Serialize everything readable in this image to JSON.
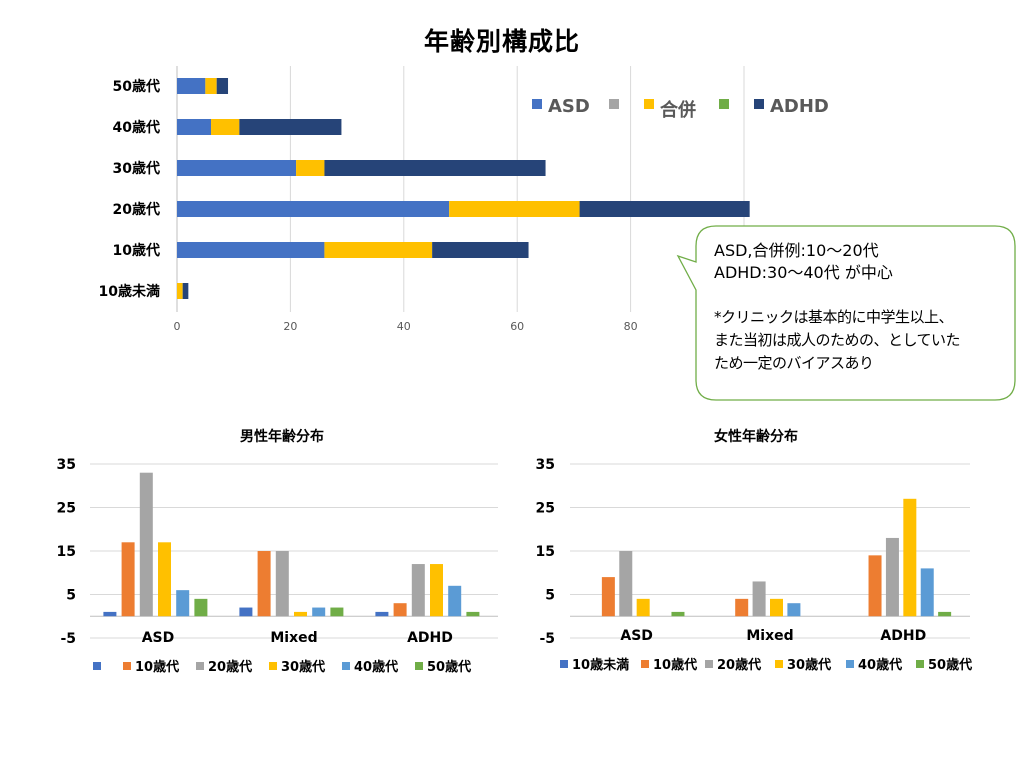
{
  "title": "年齢別構成比",
  "colors": {
    "ASD": "#4472C4",
    "grey": "#A5A5A5",
    "gold": "#FFC000",
    "green": "#70AD47",
    "ADHD": "#264478",
    "orange": "#ED7D31",
    "lightblue": "#5B9BD5",
    "grid": "#D9D9D9"
  },
  "chart_data": [
    {
      "type": "bar",
      "orientation": "horizontal",
      "stacked": true,
      "title": "年齢別構成比",
      "categories": [
        "50歳代",
        "40歳代",
        "30歳代",
        "20歳代",
        "10歳代",
        "10歳未満"
      ],
      "series": [
        {
          "name": "ASD",
          "color": "#4472C4",
          "values": [
            5,
            6,
            21,
            48,
            26,
            0
          ]
        },
        {
          "name": "",
          "color": "#A5A5A5",
          "values": [
            0,
            0,
            0,
            0,
            0,
            0
          ]
        },
        {
          "name": "合併",
          "color": "#FFC000",
          "values": [
            2,
            5,
            5,
            23,
            19,
            1
          ]
        },
        {
          "name": "",
          "color": "#70AD47",
          "values": [
            0,
            0,
            0,
            0,
            0,
            0
          ]
        },
        {
          "name": "ADHD",
          "color": "#264478",
          "values": [
            2,
            18,
            39,
            30,
            17,
            1
          ]
        }
      ],
      "xlim": [
        0,
        100
      ],
      "xticks": [
        "0",
        "20",
        "40",
        "60",
        "80"
      ],
      "grid": true,
      "legend": "top-right"
    },
    {
      "type": "bar",
      "title": "男性年齢分布",
      "categories": [
        "ASD",
        "Mixed",
        "ADHD"
      ],
      "ylim": [
        -5,
        35
      ],
      "yticks": [
        "35",
        "25",
        "15",
        "5",
        "-5"
      ],
      "legend": "bottom",
      "series": [
        {
          "name": "",
          "color": "#4472C4",
          "values": [
            1,
            2,
            1
          ]
        },
        {
          "name": "10歳代",
          "color": "#ED7D31",
          "values": [
            17,
            15,
            3
          ]
        },
        {
          "name": "20歳代",
          "color": "#A5A5A5",
          "values": [
            33,
            15,
            12
          ]
        },
        {
          "name": "30歳代",
          "color": "#FFC000",
          "values": [
            17,
            1,
            12
          ]
        },
        {
          "name": "40歳代",
          "color": "#5B9BD5",
          "values": [
            6,
            2,
            7
          ]
        },
        {
          "name": "50歳代",
          "color": "#70AD47",
          "values": [
            4,
            2,
            1
          ]
        }
      ]
    },
    {
      "type": "bar",
      "title": "女性年齢分布",
      "categories": [
        "ASD",
        "Mixed",
        "ADHD"
      ],
      "ylim": [
        -5,
        35
      ],
      "yticks": [
        "35",
        "25",
        "15",
        "5",
        "-5"
      ],
      "legend": "bottom",
      "series": [
        {
          "name": "10歳未満",
          "color": "#4472C4",
          "values": [
            0,
            0,
            0
          ]
        },
        {
          "name": "10歳代",
          "color": "#ED7D31",
          "values": [
            9,
            4,
            14
          ]
        },
        {
          "name": "20歳代",
          "color": "#A5A5A5",
          "values": [
            15,
            8,
            18
          ]
        },
        {
          "name": "30歳代",
          "color": "#FFC000",
          "values": [
            4,
            4,
            27
          ]
        },
        {
          "name": "40歳代",
          "color": "#5B9BD5",
          "values": [
            0,
            3,
            11
          ]
        },
        {
          "name": "50歳代",
          "color": "#70AD47",
          "values": [
            1,
            0,
            1
          ]
        }
      ]
    }
  ],
  "callout": {
    "line1": "ASD,合併例:10～20代",
    "line2": "ADHD:30～40代 が中心",
    "line3": "*クリニックは基本的に中学生以上、",
    "line4": "また当初は成人のための、としていた",
    "line5": "ため一定のバイアスあり"
  }
}
